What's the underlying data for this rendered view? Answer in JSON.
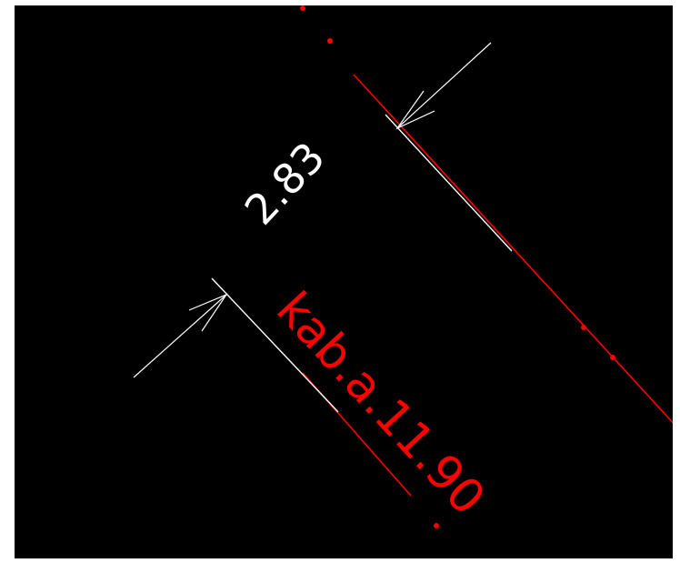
{
  "drawing": {
    "dimension_value": "2.83",
    "cable_label": "kab.a.11.90",
    "colors": {
      "background": "#000000",
      "dimension": "#ffffff",
      "cable": "#ff0000"
    }
  }
}
